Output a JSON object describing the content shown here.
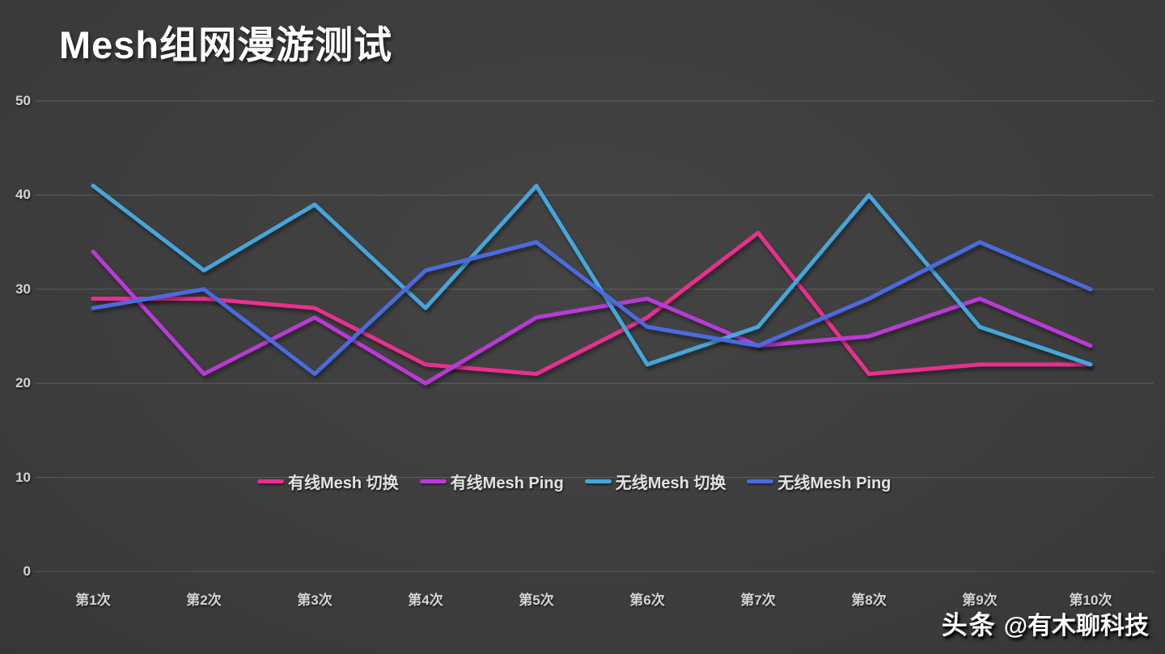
{
  "chart_data": {
    "type": "line",
    "title": "Mesh组网漫游测试",
    "categories": [
      "第1次",
      "第2次",
      "第3次",
      "第4次",
      "第5次",
      "第6次",
      "第7次",
      "第8次",
      "第9次",
      "第10次"
    ],
    "series": [
      {
        "name": "有线Mesh 切换",
        "color": "#e8308f",
        "values": [
          29,
          29,
          28,
          22,
          21,
          27,
          36,
          21,
          22,
          22
        ]
      },
      {
        "name": "有线Mesh Ping",
        "color": "#b83bd6",
        "values": [
          34,
          21,
          27,
          20,
          27,
          29,
          24,
          25,
          29,
          24
        ]
      },
      {
        "name": "无线Mesh 切换",
        "color": "#45a6dc",
        "values": [
          41,
          32,
          39,
          28,
          41,
          22,
          26,
          40,
          26,
          22
        ]
      },
      {
        "name": "无线Mesh Ping",
        "color": "#4a6be0",
        "values": [
          28,
          30,
          21,
          32,
          35,
          26,
          24,
          29,
          35,
          30
        ]
      }
    ],
    "xlabel": "",
    "ylabel": "",
    "ylim": [
      0,
      50
    ],
    "yticks": [
      0,
      10,
      20,
      30,
      40,
      50
    ],
    "grid": "horizontal",
    "legend_position": "inside-bottom-center",
    "background_color": "#3b3b3b",
    "tick_color": "#d4d4d4"
  },
  "watermark": {
    "brand": "头条",
    "handle": "@有木聊科技"
  }
}
